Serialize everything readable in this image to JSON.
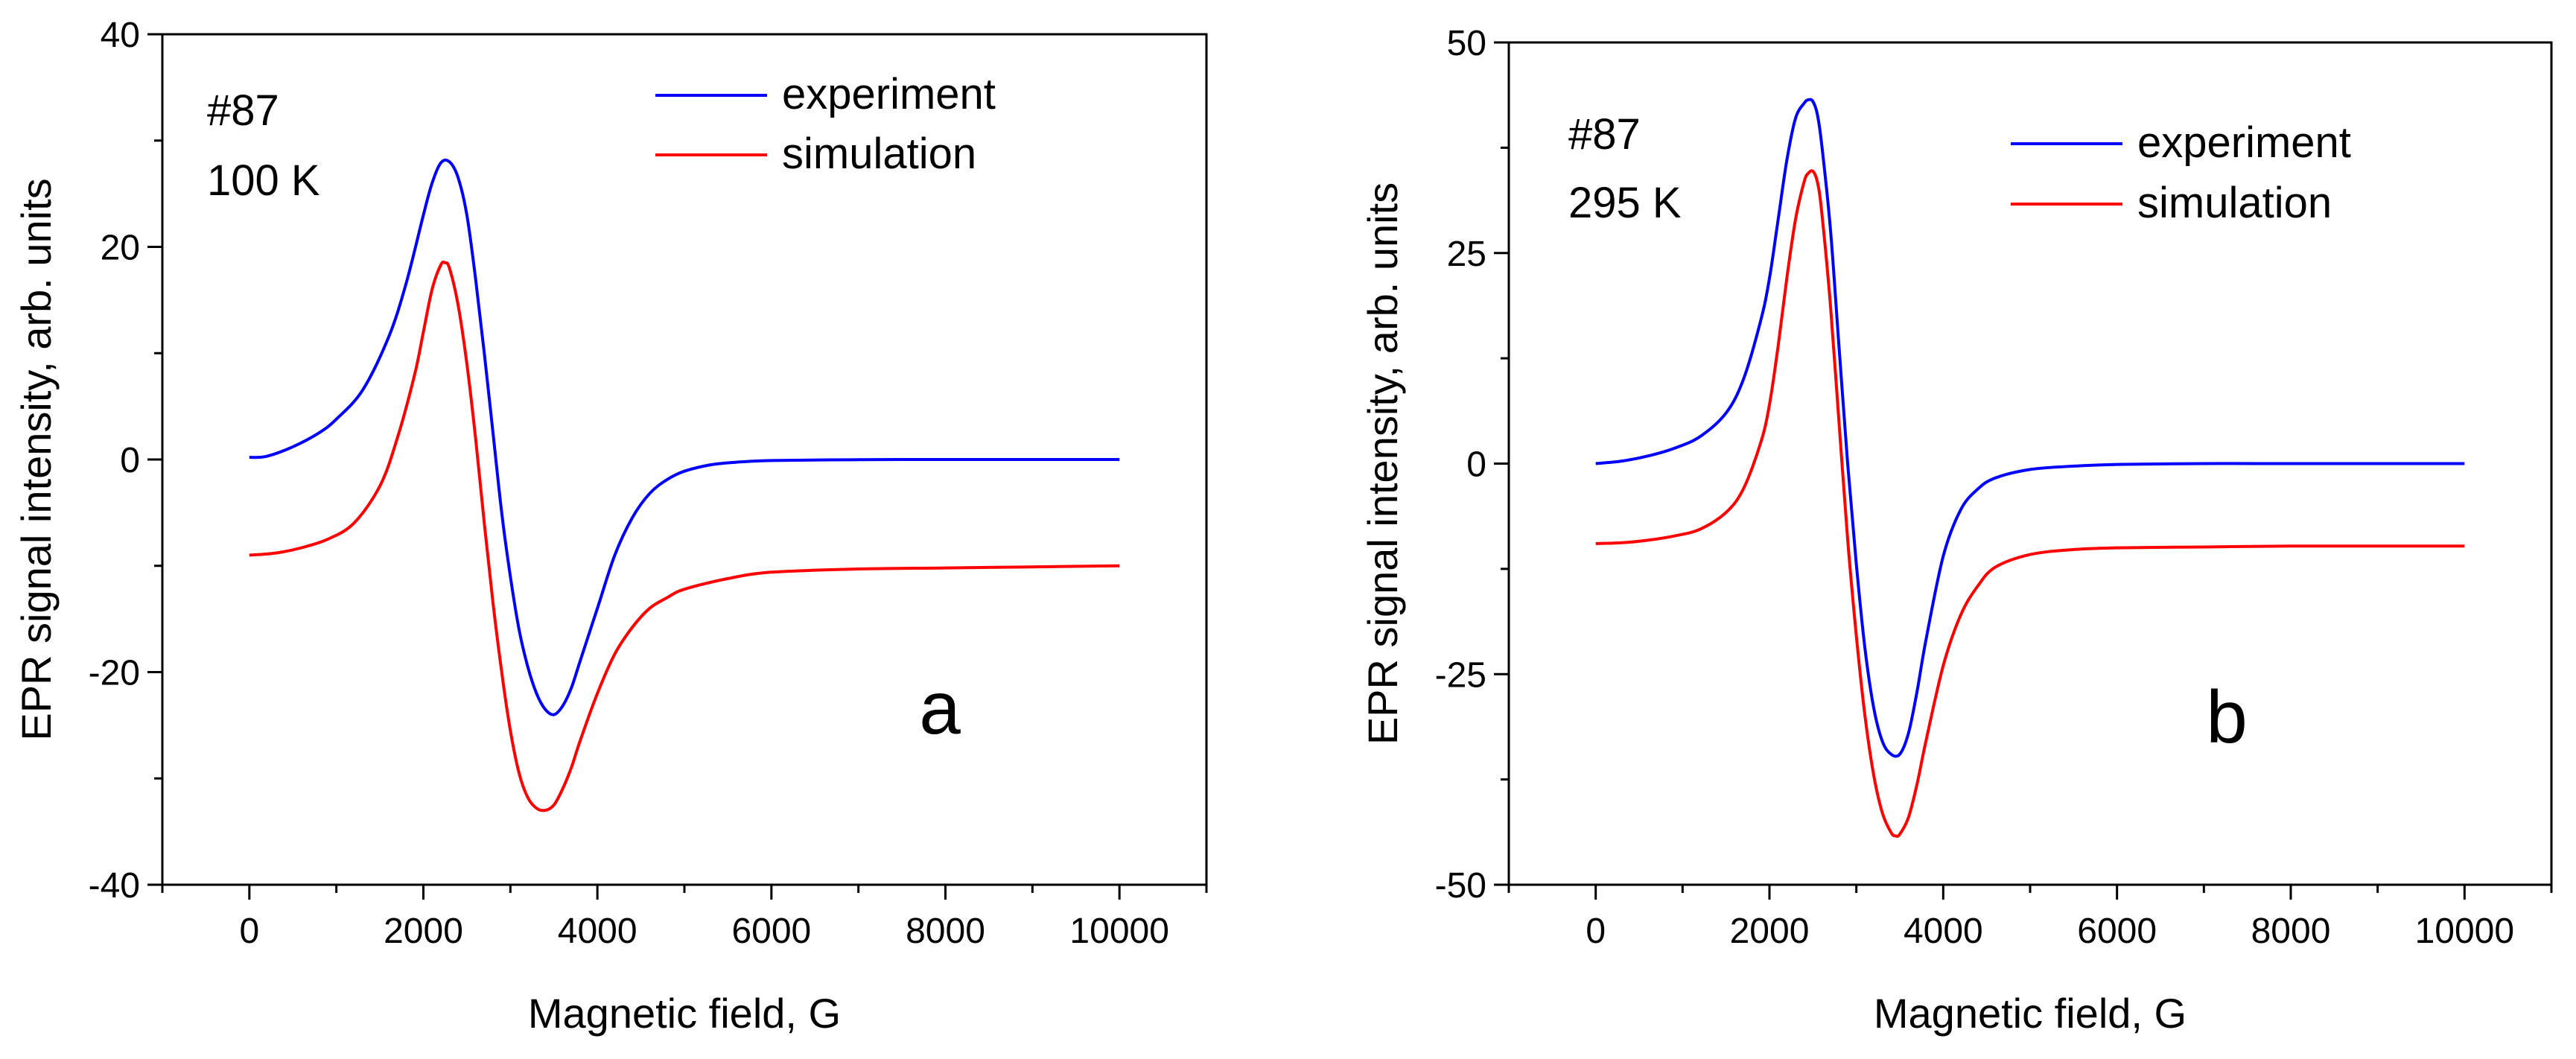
{
  "chart_data": [
    {
      "type": "line",
      "panel_label": "a",
      "sample": "#87",
      "temperature": "100 K",
      "xlabel": "Magnetic field, G",
      "ylabel": "EPR signal intensity, arb. units",
      "xlim": [
        -1000,
        11000
      ],
      "ylim": [
        -40,
        40
      ],
      "xticks": [
        0,
        2000,
        4000,
        6000,
        8000,
        10000
      ],
      "yticks": [
        -40,
        -20,
        0,
        20,
        40
      ],
      "legend_position": "top-right",
      "series": [
        {
          "name": "experiment",
          "color": "#0000ff",
          "x": [
            0,
            200,
            500,
            800,
            1000,
            1300,
            1600,
            1800,
            2000,
            2100,
            2200,
            2300,
            2400,
            2500,
            2600,
            2700,
            2800,
            2900,
            3000,
            3100,
            3200,
            3300,
            3400,
            3500,
            3600,
            3700,
            3800,
            4000,
            4200,
            4400,
            4600,
            4800,
            5000,
            5300,
            5600,
            6000,
            7000,
            8000,
            9000,
            10000
          ],
          "y": [
            0.2,
            0.3,
            1.2,
            2.5,
            3.8,
            6.5,
            11.5,
            16.5,
            23,
            26,
            27.9,
            28,
            26.5,
            23,
            17,
            10,
            2.5,
            -5,
            -11,
            -16,
            -19.5,
            -22,
            -23.5,
            -24,
            -23.2,
            -21.5,
            -19,
            -14,
            -9,
            -5.5,
            -3.2,
            -1.9,
            -1.1,
            -0.5,
            -0.25,
            -0.1,
            -0.02,
            0,
            0,
            0
          ]
        },
        {
          "name": "simulation",
          "color": "#ff0000",
          "x": [
            0,
            300,
            600,
            900,
            1200,
            1500,
            1700,
            1900,
            2000,
            2100,
            2200,
            2250,
            2300,
            2400,
            2500,
            2600,
            2700,
            2800,
            2900,
            3000,
            3100,
            3200,
            3300,
            3400,
            3500,
            3600,
            3700,
            3800,
            4000,
            4200,
            4400,
            4600,
            4800,
            5000,
            5500,
            6000,
            7000,
            8000,
            9000,
            10000
          ],
          "y": [
            -9,
            -8.8,
            -8.3,
            -7.5,
            -6,
            -2.5,
            2,
            8,
            12,
            16,
            18.3,
            18.5,
            18,
            14.5,
            9,
            2,
            -6,
            -13.5,
            -20,
            -25.5,
            -29.5,
            -31.8,
            -32.8,
            -33,
            -32.5,
            -31,
            -29,
            -26.5,
            -22,
            -18.3,
            -15.8,
            -14,
            -13,
            -12.2,
            -11.2,
            -10.6,
            -10.3,
            -10.2,
            -10.1,
            -10
          ]
        }
      ]
    },
    {
      "type": "line",
      "panel_label": "b",
      "sample": "#87",
      "temperature": "295 K",
      "xlabel": "Magnetic field, G",
      "ylabel": "EPR signal intensity, arb. units",
      "xlim": [
        -1000,
        11000
      ],
      "ylim": [
        -50,
        50
      ],
      "xticks": [
        0,
        2000,
        4000,
        6000,
        8000,
        10000
      ],
      "yticks": [
        -50,
        -25,
        0,
        25,
        50
      ],
      "legend_position": "top-right",
      "series": [
        {
          "name": "experiment",
          "color": "#0000ff",
          "x": [
            0,
            300,
            600,
            900,
            1200,
            1500,
            1700,
            1900,
            2000,
            2100,
            2200,
            2300,
            2400,
            2450,
            2500,
            2550,
            2600,
            2700,
            2800,
            2900,
            3000,
            3100,
            3200,
            3300,
            3400,
            3500,
            3600,
            3700,
            3800,
            4000,
            4200,
            4400,
            4600,
            5000,
            5500,
            6000,
            7000,
            8000,
            9000,
            10000
          ],
          "y": [
            0,
            0.3,
            0.9,
            1.8,
            3.2,
            6,
            10,
            17,
            22,
            29,
            36,
            41,
            42.8,
            43.2,
            43,
            41.5,
            38,
            28,
            14,
            0,
            -12,
            -22,
            -29,
            -33,
            -34.5,
            -34.5,
            -32,
            -27,
            -21,
            -11,
            -5.5,
            -3,
            -1.7,
            -0.7,
            -0.3,
            -0.1,
            0,
            0,
            0,
            0
          ]
        },
        {
          "name": "simulation",
          "color": "#ff0000",
          "x": [
            0,
            300,
            600,
            900,
            1200,
            1500,
            1700,
            1900,
            2000,
            2100,
            2200,
            2300,
            2400,
            2450,
            2500,
            2550,
            2600,
            2700,
            2800,
            2900,
            3000,
            3100,
            3200,
            3300,
            3400,
            3450,
            3500,
            3600,
            3700,
            3800,
            4000,
            4200,
            4400,
            4600,
            5000,
            5500,
            6000,
            7000,
            8000,
            10000
          ],
          "y": [
            -9.5,
            -9.4,
            -9.1,
            -8.6,
            -7.8,
            -5.8,
            -3,
            2.5,
            7,
            14,
            22,
            29,
            33.5,
            34.5,
            34.7,
            33.5,
            30,
            19,
            5,
            -9,
            -20.5,
            -30,
            -37,
            -41.5,
            -43.8,
            -44.2,
            -44,
            -42,
            -38,
            -33,
            -24,
            -18,
            -14.5,
            -12.3,
            -10.8,
            -10.2,
            -10,
            -9.9,
            -9.8,
            -9.8
          ]
        }
      ]
    }
  ]
}
